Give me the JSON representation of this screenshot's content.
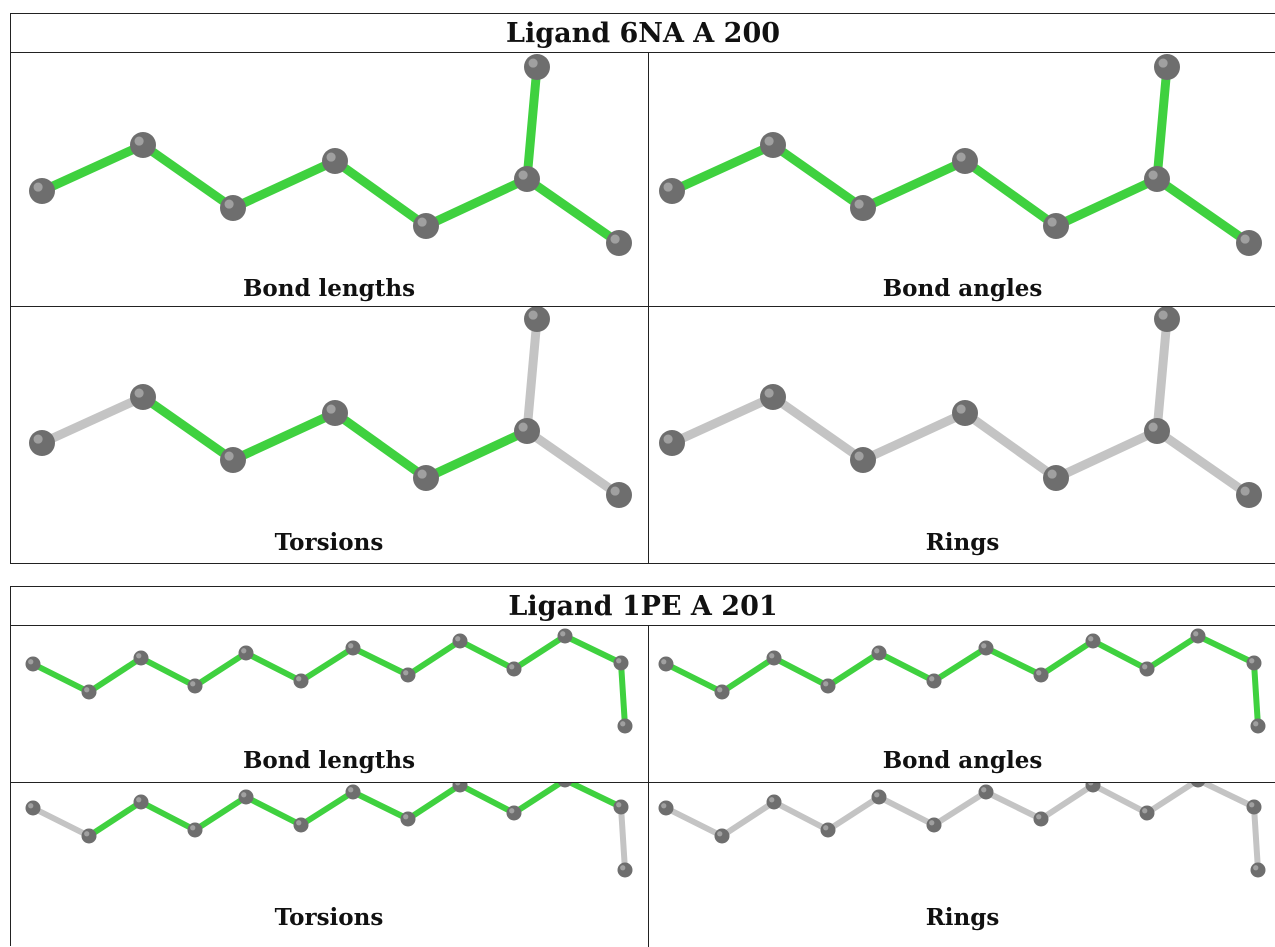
{
  "colors": {
    "highlight": "#3fd13f",
    "plain": "#c4c4c4",
    "atom": "#6e6e6e"
  },
  "ligands": [
    {
      "title": "Ligand 6NA A 200",
      "panels": [
        {
          "label": "Bond lengths",
          "bonds": [
            "g",
            "g",
            "g",
            "g",
            "g",
            "g",
            "g"
          ]
        },
        {
          "label": "Bond angles",
          "bonds": [
            "g",
            "g",
            "g",
            "g",
            "g",
            "g",
            "g"
          ]
        },
        {
          "label": "Torsions",
          "bonds": [
            "w",
            "g",
            "g",
            "g",
            "g",
            "w",
            "w"
          ]
        },
        {
          "label": "Rings",
          "bonds": [
            "w",
            "w",
            "w",
            "w",
            "w",
            "w",
            "w"
          ]
        }
      ]
    },
    {
      "title": "Ligand 1PE A 201",
      "panels": [
        {
          "label": "Bond lengths",
          "bonds": [
            "g",
            "g",
            "g",
            "g",
            "g",
            "g",
            "g",
            "g",
            "g",
            "g",
            "g",
            "g"
          ]
        },
        {
          "label": "Bond angles",
          "bonds": [
            "g",
            "g",
            "g",
            "g",
            "g",
            "g",
            "g",
            "g",
            "g",
            "g",
            "g",
            "g"
          ]
        },
        {
          "label": "Torsions",
          "bonds": [
            "w",
            "g",
            "g",
            "g",
            "g",
            "g",
            "g",
            "g",
            "g",
            "g",
            "g",
            "w"
          ]
        },
        {
          "label": "Rings",
          "bonds": [
            "w",
            "w",
            "w",
            "w",
            "w",
            "w",
            "w",
            "w",
            "w",
            "w",
            "w",
            "w"
          ]
        }
      ]
    }
  ]
}
